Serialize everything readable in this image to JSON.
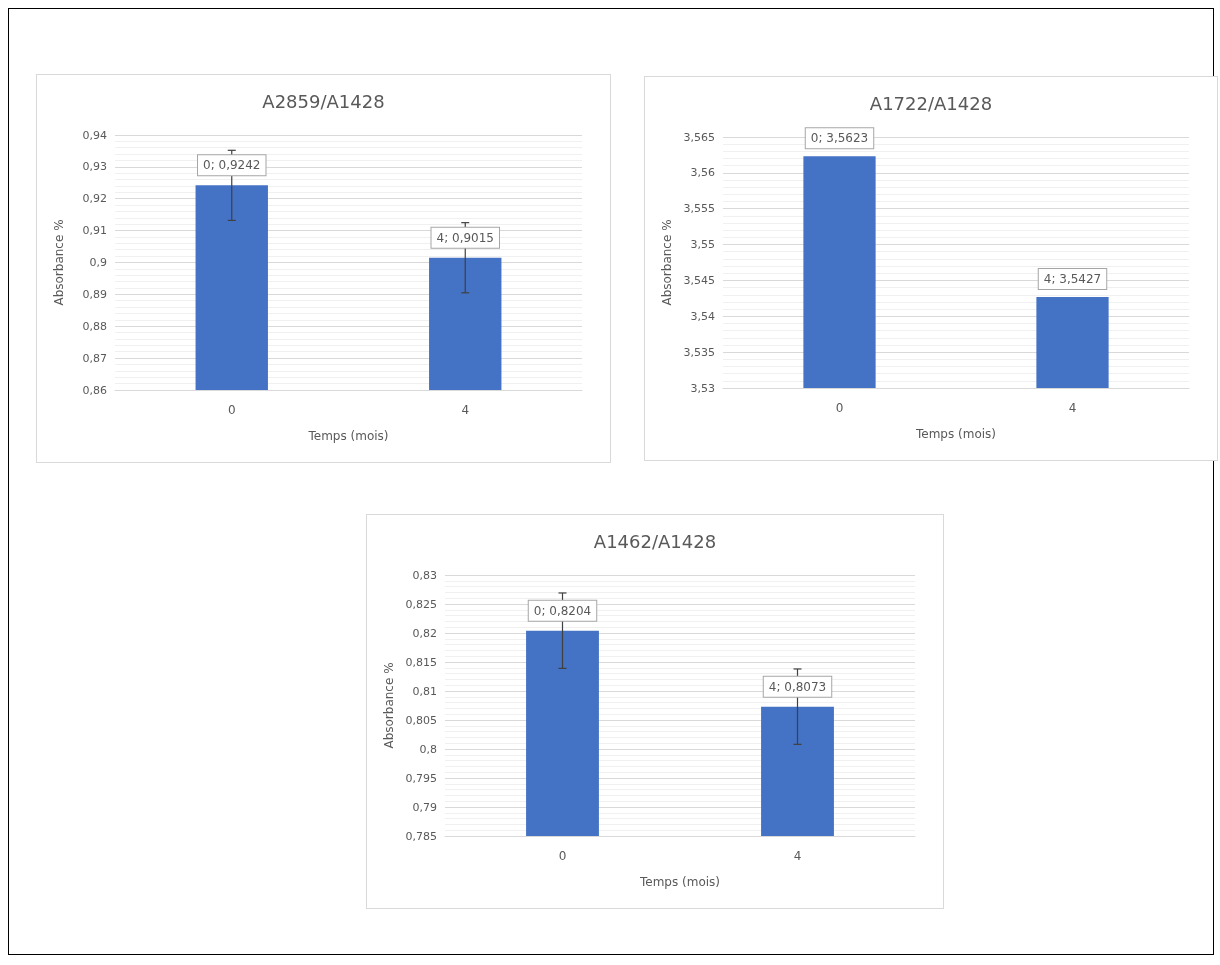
{
  "chart_data": [
    {
      "type": "bar",
      "title": "A2859/A1428",
      "xlabel": "Temps (mois)",
      "ylabel": "Absorbance %",
      "categories": [
        "0",
        "4"
      ],
      "values": [
        0.9242,
        0.9015
      ],
      "color": "#4472c4",
      "errors": [
        0.011,
        0.011
      ],
      "value_labels": [
        "0; 0,9242",
        "4; 0,9015"
      ],
      "ylim": [
        0.86,
        0.94
      ],
      "yticks": [
        {
          "value": 0.86,
          "label": "0,86"
        },
        {
          "value": 0.87,
          "label": "0,87"
        },
        {
          "value": 0.88,
          "label": "0,88"
        },
        {
          "value": 0.89,
          "label": "0,89"
        },
        {
          "value": 0.9,
          "label": "0,9"
        },
        {
          "value": 0.91,
          "label": "0,91"
        },
        {
          "value": 0.92,
          "label": "0,92"
        },
        {
          "value": 0.93,
          "label": "0,93"
        },
        {
          "value": 0.94,
          "label": "0,94"
        }
      ],
      "grid": "y"
    },
    {
      "type": "bar",
      "title": "A1722/A1428",
      "xlabel": "Temps (mois)",
      "ylabel": "Absorbance %",
      "categories": [
        "0",
        "4"
      ],
      "values": [
        3.5623,
        3.5427
      ],
      "color": "#4472c4",
      "value_labels": [
        "0; 3,5623",
        "4; 3,5427"
      ],
      "ylim": [
        3.53,
        3.565
      ],
      "yticks": [
        {
          "value": 3.53,
          "label": "3,53"
        },
        {
          "value": 3.535,
          "label": "3,535"
        },
        {
          "value": 3.54,
          "label": "3,54"
        },
        {
          "value": 3.545,
          "label": "3,545"
        },
        {
          "value": 3.55,
          "label": "3,55"
        },
        {
          "value": 3.555,
          "label": "3,555"
        },
        {
          "value": 3.56,
          "label": "3,56"
        },
        {
          "value": 3.565,
          "label": "3,565"
        }
      ],
      "grid": "y"
    },
    {
      "type": "bar",
      "title": "A1462/A1428",
      "xlabel": "Temps (mois)",
      "ylabel": "Absorbance %",
      "categories": [
        "0",
        "4"
      ],
      "values": [
        0.8204,
        0.8073
      ],
      "color": "#4472c4",
      "errors": [
        0.0065,
        0.0065
      ],
      "value_labels": [
        "0; 0,8204",
        "4; 0,8073"
      ],
      "ylim": [
        0.785,
        0.83
      ],
      "yticks": [
        {
          "value": 0.785,
          "label": "0,785"
        },
        {
          "value": 0.79,
          "label": "0,79"
        },
        {
          "value": 0.795,
          "label": "0,795"
        },
        {
          "value": 0.8,
          "label": "0,8"
        },
        {
          "value": 0.805,
          "label": "0,805"
        },
        {
          "value": 0.81,
          "label": "0,81"
        },
        {
          "value": 0.815,
          "label": "0,815"
        },
        {
          "value": 0.82,
          "label": "0,82"
        },
        {
          "value": 0.825,
          "label": "0,825"
        },
        {
          "value": 0.83,
          "label": "0,83"
        }
      ],
      "grid": "y"
    }
  ]
}
